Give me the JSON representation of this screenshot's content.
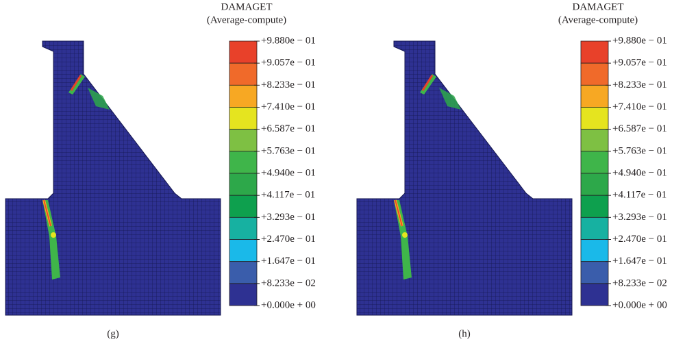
{
  "panels": [
    {
      "legend_title": "DAMAGET",
      "legend_subtitle": "(Average-compute)",
      "legend_labels": [
        "+9.880e − 01",
        "+9.057e − 01",
        "+8.233e − 01",
        "+7.410e − 01",
        "+6.587e − 01",
        "+5.763e − 01",
        "+4.940e − 01",
        "+4.117e − 01",
        "+3.293e − 01",
        "+2.470e − 01",
        "+1.647e − 01",
        "+8.233e − 02",
        "+0.000e + 00"
      ],
      "caption": "(g)"
    },
    {
      "legend_title": "DAMAGET",
      "legend_subtitle": "(Average-compute)",
      "legend_labels": [
        "+9.880e − 01",
        "+9.057e − 01",
        "+8.233e − 01",
        "+7.410e − 01",
        "+6.587e − 01",
        "+5.763e − 01",
        "+4.940e − 01",
        "+4.117e − 01",
        "+3.293e − 01",
        "+2.470e − 01",
        "+1.647e − 01",
        "+8.233e − 02",
        "+0.000e + 00"
      ],
      "caption": "(h)"
    }
  ]
}
